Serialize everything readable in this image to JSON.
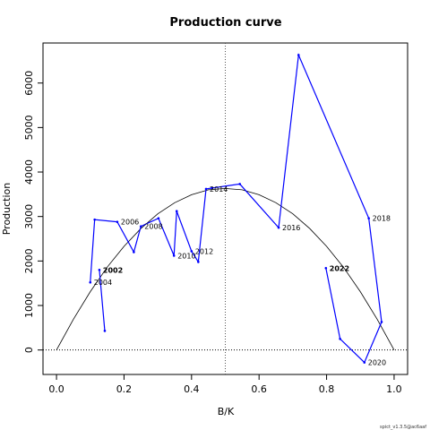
{
  "chart_data": {
    "type": "line",
    "title": "Production curve",
    "xlabel": "B/K",
    "ylabel": "Production",
    "xlim": [
      -0.04,
      1.04
    ],
    "ylim": [
      -550,
      6900
    ],
    "xticks": [
      0.0,
      0.2,
      0.4,
      0.6,
      0.8,
      1.0
    ],
    "xtick_labels": [
      "0.0",
      "0.2",
      "0.4",
      "0.6",
      "0.8",
      "1.0"
    ],
    "yticks": [
      0,
      1000,
      2000,
      3000,
      4000,
      5000,
      6000
    ],
    "ytick_labels": [
      "0",
      "1000",
      "2000",
      "3000",
      "4000",
      "5000",
      "6000"
    ],
    "grid": false,
    "series": [
      {
        "color": "#0000ff",
        "points": [
          {
            "x": 0.1,
            "y": 1520
          },
          {
            "x": 0.113,
            "y": 2930
          },
          {
            "x": 0.18,
            "y": 2880
          },
          {
            "x": 0.229,
            "y": 2200
          },
          {
            "x": 0.25,
            "y": 2780
          },
          {
            "x": 0.302,
            "y": 2960
          },
          {
            "x": 0.348,
            "y": 2120
          },
          {
            "x": 0.356,
            "y": 3120
          },
          {
            "x": 0.4,
            "y": 2220
          },
          {
            "x": 0.42,
            "y": 1980
          },
          {
            "x": 0.443,
            "y": 3620
          },
          {
            "x": 0.46,
            "y": 3640
          },
          {
            "x": 0.543,
            "y": 3730
          },
          {
            "x": 0.658,
            "y": 2750
          },
          {
            "x": 0.717,
            "y": 6630
          },
          {
            "x": 0.925,
            "y": 2960
          },
          {
            "x": 0.963,
            "y": 630
          },
          {
            "x": 0.912,
            "y": -280
          },
          {
            "x": 0.84,
            "y": 250
          },
          {
            "x": 0.798,
            "y": 1840
          }
        ]
      },
      {
        "color": "#0000ff",
        "points": [
          {
            "x": 0.127,
            "y": 1800
          },
          {
            "x": 0.143,
            "y": 430
          }
        ]
      }
    ],
    "year_labels": [
      {
        "text": "2002",
        "x": 0.127,
        "y": 1800,
        "bold": true
      },
      {
        "text": "2004",
        "x": 0.1,
        "y": 1520
      },
      {
        "text": "2006",
        "x": 0.18,
        "y": 2880
      },
      {
        "text": "2008",
        "x": 0.25,
        "y": 2780
      },
      {
        "text": "2010",
        "x": 0.348,
        "y": 2120
      },
      {
        "text": "2012",
        "x": 0.4,
        "y": 2220
      },
      {
        "text": "2014",
        "x": 0.443,
        "y": 3620
      },
      {
        "text": "2016",
        "x": 0.658,
        "y": 2750
      },
      {
        "text": "2018",
        "x": 0.925,
        "y": 2960
      },
      {
        "text": "2020",
        "x": 0.912,
        "y": -280
      },
      {
        "text": "2022",
        "x": 0.798,
        "y": 1840,
        "bold": true
      }
    ],
    "production_curve": {
      "color": "#000000",
      "x": [
        0.0,
        0.05,
        0.1,
        0.15,
        0.2,
        0.25,
        0.3,
        0.35,
        0.4,
        0.45,
        0.5,
        0.55,
        0.6,
        0.65,
        0.7,
        0.75,
        0.8,
        0.85,
        0.9,
        0.95,
        1.0
      ],
      "y": [
        0,
        690,
        1310,
        1860,
        2330,
        2730,
        3060,
        3310,
        3490,
        3600,
        3630,
        3600,
        3490,
        3310,
        3060,
        2730,
        2330,
        1860,
        1310,
        690,
        0
      ]
    },
    "reference_lines": [
      {
        "orientation": "vertical",
        "x": 0.5,
        "style": "dotted",
        "color": "#555555"
      },
      {
        "orientation": "horizontal",
        "y": 0,
        "style": "dotted",
        "color": "#000000"
      }
    ]
  },
  "footer": "spict_v1.3.5@ac6aaf"
}
